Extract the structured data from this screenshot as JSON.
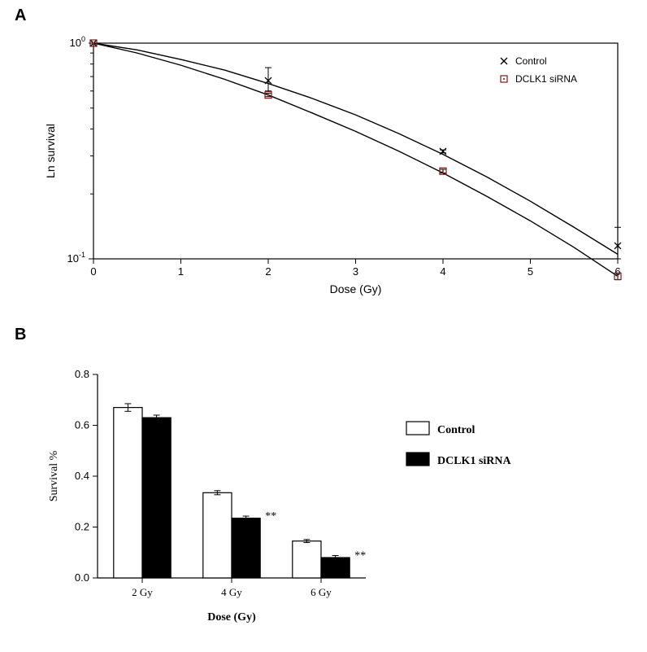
{
  "panelA": {
    "label": "A",
    "type": "line",
    "title_fontsize": 20,
    "x_label": "Dose (Gy)",
    "y_label": "Ln survival",
    "label_fontsize": 14,
    "tick_fontsize": 13,
    "xlim": [
      0,
      6
    ],
    "x_ticks": [
      0,
      1,
      2,
      3,
      4,
      5,
      6
    ],
    "y_scale": "log",
    "ylim": [
      0.1,
      1.0
    ],
    "y_tick_labels": [
      "10⁻¹",
      "10⁰"
    ],
    "y_tick_values": [
      0.1,
      1.0
    ],
    "background_color": "#ffffff",
    "axis_color": "#000000",
    "legend": {
      "position": "upper-right",
      "items": [
        {
          "label": "Control",
          "marker": "x",
          "color": "#000000"
        },
        {
          "label": "DCLK1 siRNA",
          "marker": "square-open",
          "color": "#7a1a1a"
        }
      ]
    },
    "series": {
      "Control": {
        "marker": "x",
        "marker_size": 6,
        "marker_color": "#000000",
        "line_color": "#000000",
        "line_width": 1.4,
        "doses": [
          0,
          2,
          4,
          6
        ],
        "values": [
          1.0,
          0.67,
          0.315,
          0.115
        ],
        "err_low": [
          0,
          0.07,
          0.005,
          0.015
        ],
        "err_high": [
          0,
          0.1,
          0.005,
          0.025
        ]
      },
      "DCLK1_siRNA": {
        "marker": "square-open",
        "marker_size": 6,
        "marker_color": "#7a1a1a",
        "line_color": "#000000",
        "line_width": 1.4,
        "doses": [
          0,
          2,
          4,
          6
        ],
        "values": [
          1.0,
          0.575,
          0.255,
          0.083
        ],
        "err_low": [
          0,
          0.01,
          0.005,
          0.003
        ],
        "err_high": [
          0,
          0.01,
          0.005,
          0.003
        ]
      }
    },
    "curves": {
      "Control": [
        [
          0,
          1.0
        ],
        [
          0.5,
          0.93
        ],
        [
          1,
          0.84
        ],
        [
          1.5,
          0.75
        ],
        [
          2,
          0.65
        ],
        [
          2.5,
          0.555
        ],
        [
          3,
          0.465
        ],
        [
          3.5,
          0.38
        ],
        [
          4,
          0.305
        ],
        [
          4.5,
          0.24
        ],
        [
          5,
          0.185
        ],
        [
          5.5,
          0.14
        ],
        [
          6,
          0.105
        ]
      ],
      "DCLK1_siRNA": [
        [
          0,
          1.0
        ],
        [
          0.5,
          0.9
        ],
        [
          1,
          0.79
        ],
        [
          1.5,
          0.68
        ],
        [
          2,
          0.575
        ],
        [
          2.5,
          0.475
        ],
        [
          3,
          0.39
        ],
        [
          3.5,
          0.315
        ],
        [
          4,
          0.25
        ],
        [
          4.5,
          0.195
        ],
        [
          5,
          0.15
        ],
        [
          5.5,
          0.113
        ],
        [
          6,
          0.083
        ]
      ]
    }
  },
  "panelB": {
    "label": "B",
    "type": "bar",
    "title_fontsize": 20,
    "x_label": "Dose (Gy)",
    "y_label": "Survival %",
    "label_fontsize": 15,
    "tick_fontsize": 13,
    "categories": [
      "2 Gy",
      "4 Gy",
      "6 Gy"
    ],
    "ylim": [
      0.0,
      0.8
    ],
    "y_ticks": [
      0.0,
      0.2,
      0.4,
      0.6,
      0.8
    ],
    "bar_width": 0.36,
    "gap_between_pair": 0.02,
    "background_color": "#ffffff",
    "axis_color": "#000000",
    "legend": {
      "position": "right",
      "items": [
        {
          "label": "Control",
          "fill": "#ffffff",
          "stroke": "#000000"
        },
        {
          "label": "DCLK1 siRNA",
          "fill": "#000000",
          "stroke": "#000000"
        }
      ]
    },
    "series": {
      "Control": {
        "fill": "#ffffff",
        "stroke": "#000000",
        "values": [
          0.67,
          0.335,
          0.145
        ],
        "errors": [
          0.015,
          0.008,
          0.006
        ]
      },
      "DCLK1_siRNA": {
        "fill": "#000000",
        "stroke": "#000000",
        "values": [
          0.63,
          0.235,
          0.08
        ],
        "errors": [
          0.01,
          0.008,
          0.008
        ]
      }
    },
    "significance": [
      {
        "category": "4 Gy",
        "series": "DCLK1_siRNA",
        "label": "**"
      },
      {
        "category": "6 Gy",
        "series": "DCLK1_siRNA",
        "label": "**"
      }
    ]
  }
}
